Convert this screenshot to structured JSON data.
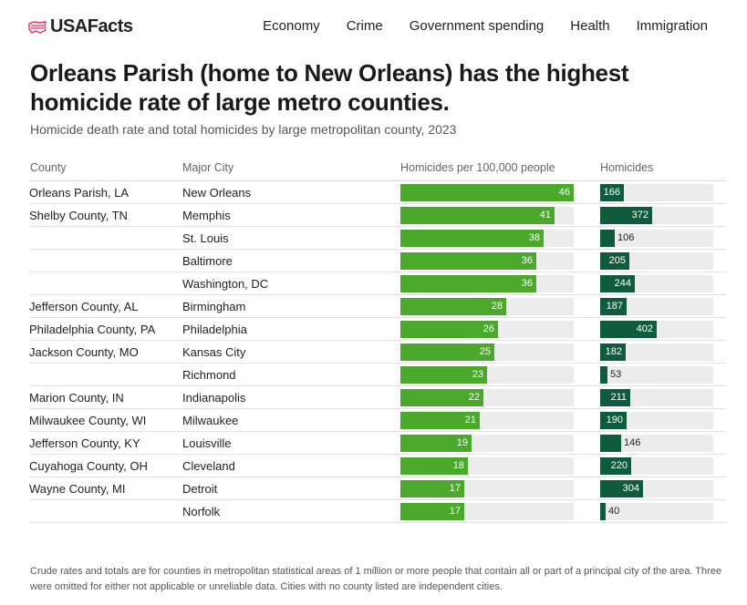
{
  "header": {
    "brand": "USAFacts",
    "nav": [
      "Economy",
      "Crime",
      "Government spending",
      "Health",
      "Immigration"
    ]
  },
  "title": "Orleans Parish (home to New Orleans) has the highest homicide rate of large metro counties.",
  "subtitle": "Homicide death rate and total homicides by large metropolitan county, 2023",
  "columns": {
    "county": "County",
    "city": "Major City",
    "rate": "Homicides per 100,000 people",
    "homicides": "Homicides"
  },
  "colors": {
    "rate_bar": "#4aa82b",
    "homicide_bar": "#0f5b3d",
    "track": "#ececec"
  },
  "chart_data": {
    "type": "table",
    "title": "Orleans Parish (home to New Orleans) has the highest homicide rate of large metro counties.",
    "subtitle": "Homicide death rate and total homicides by large metropolitan county, 2023",
    "rate_max": 46,
    "homicides_max": 402,
    "rows": [
      {
        "county": "Orleans Parish, LA",
        "city": "New Orleans",
        "rate": 46,
        "homicides": 166
      },
      {
        "county": "Shelby County, TN",
        "city": "Memphis",
        "rate": 41,
        "homicides": 372
      },
      {
        "county": "",
        "city": "St. Louis",
        "rate": 38,
        "homicides": 106
      },
      {
        "county": "",
        "city": "Baltimore",
        "rate": 36,
        "homicides": 205
      },
      {
        "county": "",
        "city": "Washington, DC",
        "rate": 36,
        "homicides": 244
      },
      {
        "county": "Jefferson County, AL",
        "city": "Birmingham",
        "rate": 28,
        "homicides": 187
      },
      {
        "county": "Philadelphia County, PA",
        "city": "Philadelphia",
        "rate": 26,
        "homicides": 402
      },
      {
        "county": "Jackson County, MO",
        "city": "Kansas City",
        "rate": 25,
        "homicides": 182
      },
      {
        "county": "",
        "city": "Richmond",
        "rate": 23,
        "homicides": 53
      },
      {
        "county": "Marion County, IN",
        "city": "Indianapolis",
        "rate": 22,
        "homicides": 211
      },
      {
        "county": "Milwaukee County, WI",
        "city": "Milwaukee",
        "rate": 21,
        "homicides": 190
      },
      {
        "county": "Jefferson County, KY",
        "city": "Louisville",
        "rate": 19,
        "homicides": 146
      },
      {
        "county": "Cuyahoga County, OH",
        "city": "Cleveland",
        "rate": 18,
        "homicides": 220
      },
      {
        "county": "Wayne County, MI",
        "city": "Detroit",
        "rate": 17,
        "homicides": 304
      },
      {
        "county": "",
        "city": "Norfolk",
        "rate": 17,
        "homicides": 40
      }
    ]
  },
  "footnote": "Crude rates and totals are for counties in metropolitan statistical areas of 1 million or more people that contain all or part of a principal city of the area. Three were omitted for either not applicable or unreliable data. Cities with no county listed are independent cities."
}
